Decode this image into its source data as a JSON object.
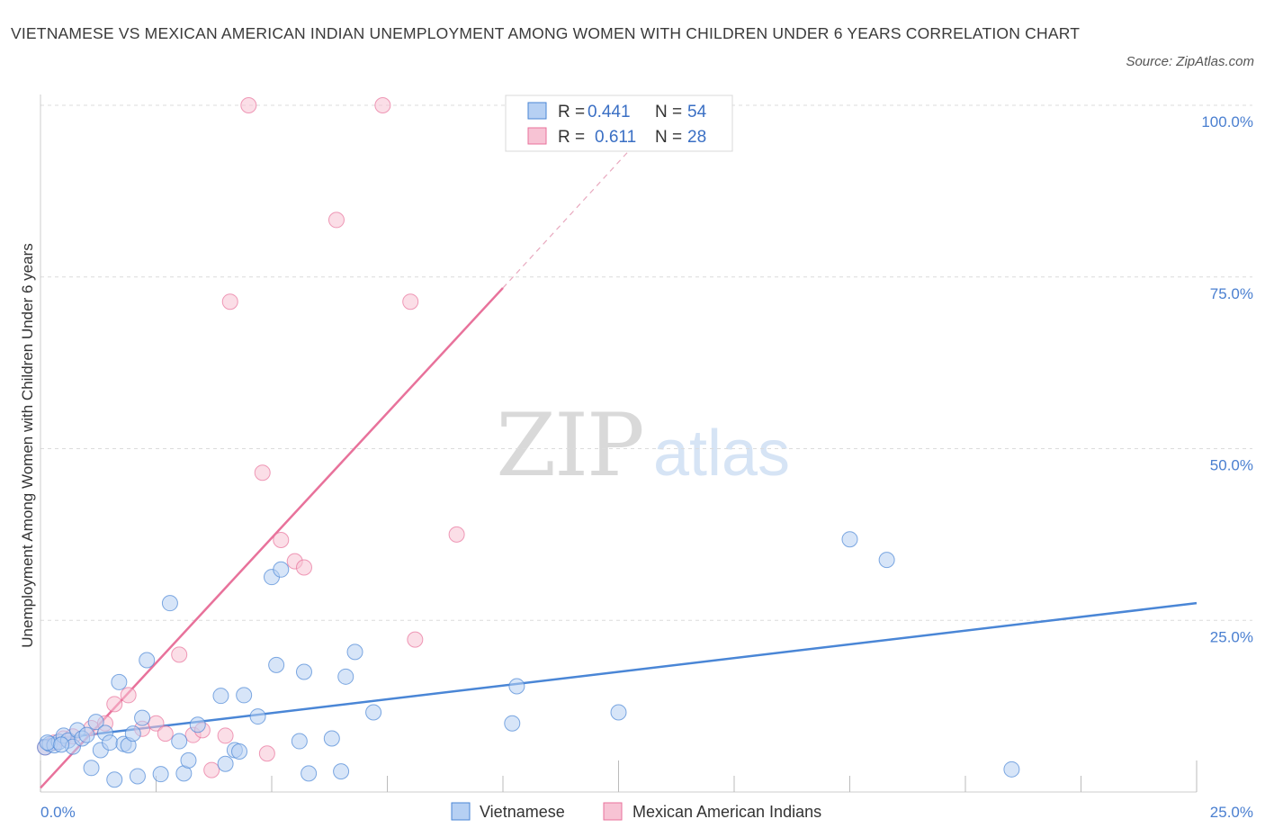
{
  "chart_data": {
    "type": "scatter",
    "title": "VIETNAMESE VS MEXICAN AMERICAN INDIAN UNEMPLOYMENT AMONG WOMEN WITH CHILDREN UNDER 6 YEARS CORRELATION CHART",
    "source": "Source: ZipAtlas.com",
    "ylabel": "Unemployment Among Women with Children Under 6 years",
    "xlabel": "",
    "xlim": [
      0,
      25
    ],
    "ylim": [
      0,
      100
    ],
    "x_tick_labels": [
      "0.0%",
      "25.0%"
    ],
    "y_tick_labels": [
      "25.0%",
      "50.0%",
      "75.0%",
      "100.0%"
    ],
    "y_ticks": [
      25,
      50,
      75,
      100
    ],
    "grid": "horizontal dashed",
    "watermark": {
      "zip": "ZIP",
      "atlas": "atlas"
    },
    "colors": {
      "vietnamese": "#4a86d6",
      "vietnamese_fill": "#b6d0f3",
      "mexican": "#e8729b",
      "mexican_fill": "#f7c3d4"
    },
    "stats_legend": [
      {
        "r_label": "R =",
        "r_value": "0.441",
        "n_label": "N =",
        "n_value": "54"
      },
      {
        "r_label": "R =",
        "r_value": "0.611",
        "n_label": "N =",
        "n_value": "28"
      }
    ],
    "series": [
      {
        "name": "Vietnamese",
        "trend": {
          "x": [
            0,
            25
          ],
          "y": [
            7.5,
            27.5
          ]
        },
        "points": [
          [
            0.1,
            6.5
          ],
          [
            0.2,
            7.0
          ],
          [
            0.3,
            6.8
          ],
          [
            0.4,
            7.3
          ],
          [
            0.5,
            8.2
          ],
          [
            0.6,
            7.5
          ],
          [
            0.7,
            6.6
          ],
          [
            0.8,
            9.0
          ],
          [
            0.9,
            7.8
          ],
          [
            1.0,
            8.3
          ],
          [
            1.1,
            3.5
          ],
          [
            1.2,
            10.2
          ],
          [
            1.3,
            6.1
          ],
          [
            1.4,
            8.6
          ],
          [
            1.5,
            7.2
          ],
          [
            1.6,
            1.8
          ],
          [
            1.7,
            16.0
          ],
          [
            1.8,
            7.0
          ],
          [
            1.9,
            6.8
          ],
          [
            2.0,
            8.5
          ],
          [
            2.1,
            2.3
          ],
          [
            2.2,
            10.8
          ],
          [
            2.3,
            19.2
          ],
          [
            2.6,
            2.6
          ],
          [
            2.8,
            27.5
          ],
          [
            3.0,
            7.4
          ],
          [
            3.1,
            2.7
          ],
          [
            3.2,
            4.6
          ],
          [
            3.4,
            9.8
          ],
          [
            3.9,
            14.0
          ],
          [
            4.0,
            4.1
          ],
          [
            4.2,
            6.1
          ],
          [
            4.3,
            5.9
          ],
          [
            4.4,
            14.1
          ],
          [
            4.7,
            11.0
          ],
          [
            5.0,
            31.3
          ],
          [
            5.1,
            18.5
          ],
          [
            5.2,
            32.4
          ],
          [
            5.6,
            7.4
          ],
          [
            5.7,
            17.5
          ],
          [
            5.8,
            2.7
          ],
          [
            6.3,
            7.8
          ],
          [
            6.5,
            3.0
          ],
          [
            6.6,
            16.8
          ],
          [
            6.8,
            20.4
          ],
          [
            7.2,
            11.6
          ],
          [
            10.2,
            10.0
          ],
          [
            10.3,
            15.4
          ],
          [
            12.5,
            11.6
          ],
          [
            17.5,
            36.8
          ],
          [
            18.3,
            33.8
          ],
          [
            21.0,
            3.3
          ],
          [
            0.15,
            7.2
          ],
          [
            0.45,
            6.9
          ]
        ]
      },
      {
        "name": "Mexican American Indians",
        "trend": {
          "x": [
            0,
            10
          ],
          "y": [
            0.6,
            73.4
          ]
        },
        "trend_dashed": {
          "x": [
            10,
            13
          ],
          "y": [
            73.4,
            95.4
          ]
        },
        "points": [
          [
            0.1,
            6.5
          ],
          [
            0.3,
            7.2
          ],
          [
            0.5,
            7.8
          ],
          [
            1.1,
            9.3
          ],
          [
            1.4,
            10.0
          ],
          [
            1.6,
            12.8
          ],
          [
            1.9,
            14.1
          ],
          [
            2.2,
            9.2
          ],
          [
            2.5,
            10.0
          ],
          [
            2.7,
            8.5
          ],
          [
            3.0,
            20.0
          ],
          [
            3.3,
            8.3
          ],
          [
            3.5,
            9.0
          ],
          [
            3.7,
            3.2
          ],
          [
            4.0,
            8.2
          ],
          [
            4.1,
            71.4
          ],
          [
            4.5,
            100.0
          ],
          [
            4.8,
            46.5
          ],
          [
            4.9,
            5.6
          ],
          [
            5.2,
            36.7
          ],
          [
            5.5,
            33.6
          ],
          [
            5.7,
            32.7
          ],
          [
            6.4,
            83.3
          ],
          [
            7.4,
            100.0
          ],
          [
            8.0,
            71.4
          ],
          [
            8.1,
            22.2
          ],
          [
            9.0,
            37.5
          ],
          [
            0.7,
            8.1
          ]
        ]
      }
    ]
  }
}
